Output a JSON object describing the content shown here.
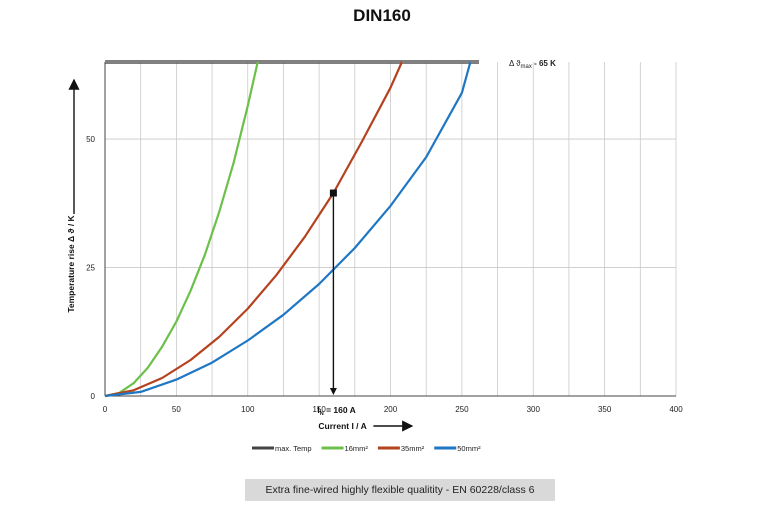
{
  "page": {
    "title": "DIN160"
  },
  "footer": {
    "text": "Extra fine-wired highly flexible qualitity - EN 60228/class 6"
  },
  "chart_data": {
    "type": "line",
    "title": "DIN160",
    "xlabel": "Current I / A",
    "ylabel": "Temperature rise Δ ϑ / K",
    "xlim": [
      0,
      400
    ],
    "ylim": [
      0,
      65
    ],
    "x_ticks": [
      "0",
      "50",
      "100",
      "150",
      "200",
      "250",
      "300",
      "350",
      "400"
    ],
    "y_ticks": [
      "0",
      "25",
      "50"
    ],
    "grid": "vertical",
    "legend_position": "bottom",
    "annotations": {
      "max_temp_label": "Δ ϑ",
      "max_temp_sub": "max",
      "max_temp_value": "- 65 K",
      "rated_current_label": "I",
      "rated_current_sub": "N",
      "rated_current_value": "= 160 A",
      "rated_current_x": 160,
      "rated_point_y": 39.5
    },
    "series": [
      {
        "name": "max. Temp",
        "color": "#555555",
        "x": [
          0,
          262
        ],
        "y": [
          65,
          65
        ]
      },
      {
        "name": "16mm²",
        "color": "#6cc04a",
        "x": [
          0,
          10,
          20,
          30,
          40,
          50,
          60,
          70,
          80,
          90,
          100,
          107
        ],
        "y": [
          0,
          0.6,
          2.5,
          5.5,
          9.6,
          14.5,
          20.5,
          27.5,
          35.8,
          45.3,
          56.5,
          65
        ]
      },
      {
        "name": "35mm²",
        "color": "#b5421e",
        "x": [
          0,
          20,
          40,
          60,
          80,
          100,
          120,
          140,
          160,
          180,
          200,
          208
        ],
        "y": [
          0,
          1.1,
          3.5,
          7.0,
          11.5,
          17.0,
          23.5,
          31.0,
          39.5,
          49.5,
          60.0,
          65
        ]
      },
      {
        "name": "50mm²",
        "color": "#1f77c4",
        "x": [
          0,
          25,
          50,
          75,
          100,
          125,
          150,
          175,
          200,
          225,
          250,
          256
        ],
        "y": [
          0,
          0.8,
          3.2,
          6.5,
          10.8,
          15.8,
          21.8,
          28.8,
          37.0,
          46.5,
          59.0,
          65
        ]
      }
    ]
  }
}
